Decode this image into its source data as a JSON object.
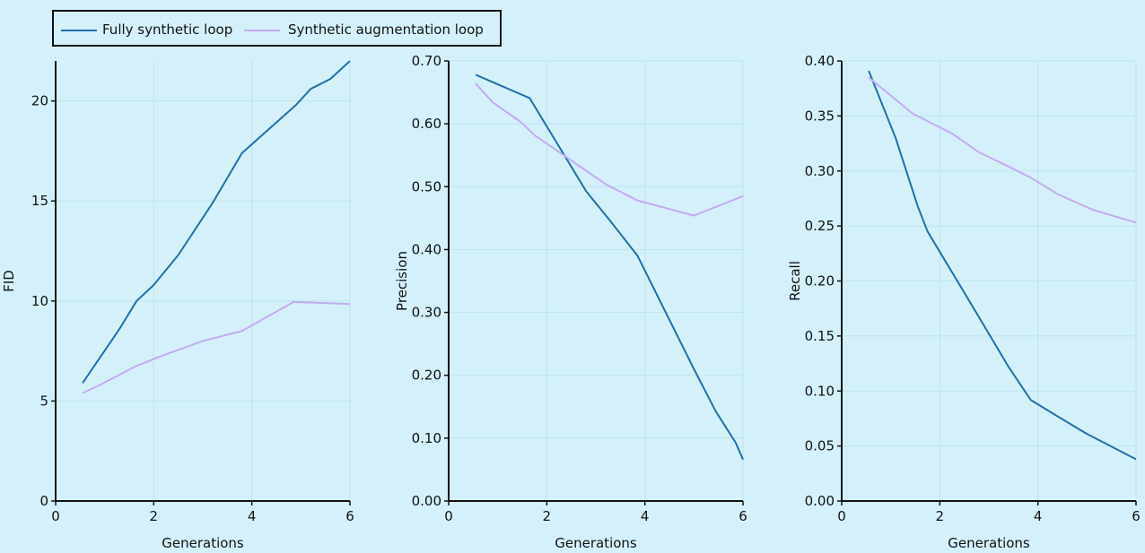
{
  "legend": {
    "items": [
      {
        "label": "Fully synthetic loop",
        "color": "#1f6fad"
      },
      {
        "label": "Synthetic augmentation loop",
        "color": "#c3a9f0"
      }
    ]
  },
  "chart_data": [
    {
      "type": "line",
      "xlabel": "Generations",
      "ylabel": "FID",
      "xlim": [
        0,
        6
      ],
      "ylim": [
        0,
        22
      ],
      "xticks": [
        0,
        2,
        4,
        6
      ],
      "yticks": [
        0,
        5,
        10,
        15,
        20
      ],
      "ytick_labels": [
        "0",
        "5",
        "10",
        "15",
        "20"
      ],
      "grid": true,
      "series": [
        {
          "name": "Fully synthetic loop",
          "color": "#1f6fad",
          "x": [
            0.55,
            1.3,
            1.65,
            2.0,
            2.5,
            3.2,
            3.8,
            4.9,
            5.2,
            5.6,
            6.0
          ],
          "y": [
            5.9,
            8.6,
            10.0,
            10.8,
            12.3,
            14.9,
            17.4,
            19.8,
            20.6,
            21.1,
            22.0
          ]
        },
        {
          "name": "Synthetic augmentation loop",
          "color": "#c3a9f0",
          "x": [
            0.55,
            0.9,
            1.6,
            2.1,
            3.0,
            3.8,
            4.85,
            6.0
          ],
          "y": [
            5.4,
            5.8,
            6.7,
            7.2,
            8.0,
            8.5,
            9.95,
            9.85
          ]
        }
      ]
    },
    {
      "type": "line",
      "xlabel": "Generations",
      "ylabel": "Precision",
      "xlim": [
        0,
        6
      ],
      "ylim": [
        0,
        0.7
      ],
      "xticks": [
        0,
        2,
        4,
        6
      ],
      "yticks": [
        0,
        0.1,
        0.2,
        0.3,
        0.4,
        0.5,
        0.6,
        0.7
      ],
      "ytick_labels": [
        "0.00",
        "0.10",
        "0.20",
        "0.30",
        "0.40",
        "0.50",
        "0.60",
        "0.70"
      ],
      "grid": true,
      "series": [
        {
          "name": "Fully synthetic loop",
          "color": "#1f6fad",
          "x": [
            0.55,
            1.65,
            2.8,
            3.3,
            3.85,
            5.0,
            5.45,
            5.85,
            6.0
          ],
          "y": [
            0.678,
            0.641,
            0.493,
            0.445,
            0.39,
            0.21,
            0.142,
            0.093,
            0.066
          ]
        },
        {
          "name": "Synthetic augmentation loop",
          "color": "#c3a9f0",
          "x": [
            0.55,
            0.9,
            1.45,
            1.75,
            3.2,
            3.85,
            5.0,
            6.0
          ],
          "y": [
            0.664,
            0.634,
            0.604,
            0.582,
            0.504,
            0.478,
            0.454,
            0.485
          ]
        }
      ]
    },
    {
      "type": "line",
      "xlabel": "Generations",
      "ylabel": "Recall",
      "xlim": [
        0,
        6
      ],
      "ylim": [
        0,
        0.4
      ],
      "xticks": [
        0,
        2,
        4,
        6
      ],
      "yticks": [
        0,
        0.05,
        0.1,
        0.15,
        0.2,
        0.25,
        0.3,
        0.35,
        0.4
      ],
      "ytick_labels": [
        "0.00",
        "0.05",
        "0.10",
        "0.15",
        "0.20",
        "0.25",
        "0.30",
        "0.35",
        "0.40"
      ],
      "grid": true,
      "series": [
        {
          "name": "Fully synthetic loop",
          "color": "#1f6fad",
          "x": [
            0.55,
            1.1,
            1.55,
            1.75,
            2.6,
            3.4,
            3.85,
            4.4,
            5.0,
            6.0
          ],
          "y": [
            0.391,
            0.33,
            0.268,
            0.245,
            0.182,
            0.122,
            0.092,
            0.077,
            0.061,
            0.038
          ]
        },
        {
          "name": "Synthetic augmentation loop",
          "color": "#c3a9f0",
          "x": [
            0.55,
            1.45,
            2.25,
            2.8,
            3.4,
            3.85,
            4.4,
            5.1,
            6.0
          ],
          "y": [
            0.385,
            0.352,
            0.334,
            0.317,
            0.304,
            0.294,
            0.279,
            0.265,
            0.253
          ]
        }
      ]
    }
  ]
}
